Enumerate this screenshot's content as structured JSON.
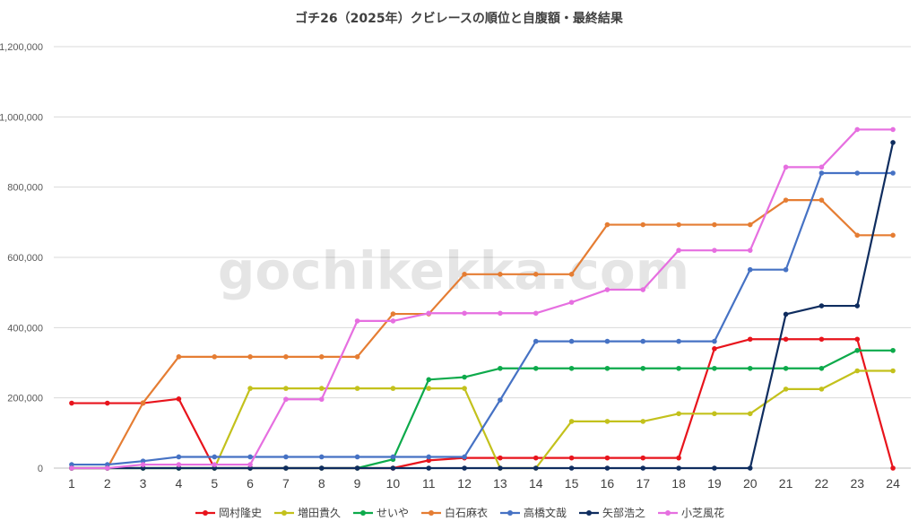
{
  "chart_data": {
    "type": "line",
    "title": "ゴチ26（2025年）クビレースの順位と自腹額・最終結果",
    "watermark": "gochikekka.com",
    "xlabel": "",
    "ylabel": "",
    "x": [
      1,
      2,
      3,
      4,
      5,
      6,
      7,
      8,
      9,
      10,
      11,
      12,
      13,
      14,
      15,
      16,
      17,
      18,
      19,
      20,
      21,
      22,
      23,
      24
    ],
    "ylim": [
      0,
      1200000
    ],
    "yticks": [
      0,
      200000,
      400000,
      600000,
      800000,
      1000000,
      1200000
    ],
    "ytick_labels": [
      "0",
      "200,000",
      "400,000",
      "600,000",
      "800,000",
      "1,000,000",
      "1,200,000"
    ],
    "xtick_labels": [
      "1",
      "2",
      "3",
      "4",
      "5",
      "6",
      "7",
      "8",
      "9",
      "10",
      "11",
      "12",
      "13",
      "14",
      "15",
      "16",
      "17",
      "18",
      "19",
      "20",
      "21",
      "22",
      "23",
      "24"
    ],
    "grid": true,
    "legend_position": "bottom",
    "series": [
      {
        "name": "岡村隆史",
        "color": "#e8141c",
        "values": [
          185000,
          185000,
          185000,
          197000,
          0,
          0,
          0,
          0,
          0,
          0,
          22000,
          29000,
          29000,
          29000,
          29000,
          29000,
          29000,
          29000,
          340000,
          367000,
          367000,
          367000,
          367000,
          0
        ]
      },
      {
        "name": "増田貴久",
        "color": "#c3c11c",
        "values": [
          0,
          0,
          0,
          0,
          0,
          227000,
          227000,
          227000,
          227000,
          227000,
          227000,
          227000,
          0,
          0,
          133000,
          133000,
          133000,
          155000,
          155000,
          155000,
          225000,
          225000,
          277000,
          277000
        ]
      },
      {
        "name": "せいや",
        "color": "#0daa4b",
        "values": [
          0,
          0,
          0,
          0,
          0,
          0,
          0,
          0,
          0,
          25000,
          252000,
          259000,
          284000,
          284000,
          284000,
          284000,
          284000,
          284000,
          284000,
          284000,
          284000,
          284000,
          335000,
          335000
        ]
      },
      {
        "name": "白石麻衣",
        "color": "#e57d33",
        "values": [
          0,
          0,
          186000,
          317000,
          317000,
          317000,
          317000,
          317000,
          317000,
          439000,
          439000,
          552000,
          552000,
          552000,
          552000,
          693000,
          693000,
          693000,
          693000,
          693000,
          763000,
          763000,
          663000,
          663000
        ]
      },
      {
        "name": "高橋文哉",
        "color": "#4672c4",
        "values": [
          10000,
          10000,
          20000,
          32000,
          32000,
          32000,
          32000,
          32000,
          32000,
          32000,
          32000,
          32000,
          194000,
          361000,
          361000,
          361000,
          361000,
          361000,
          361000,
          565000,
          565000,
          840000,
          840000,
          840000
        ]
      },
      {
        "name": "矢部浩之",
        "color": "#0f2d5f",
        "values": [
          0,
          0,
          0,
          0,
          0,
          0,
          0,
          0,
          0,
          0,
          0,
          0,
          0,
          0,
          0,
          0,
          0,
          0,
          0,
          0,
          438000,
          462000,
          462000,
          927000
        ]
      },
      {
        "name": "小芝風花",
        "color": "#e66fe0",
        "values": [
          0,
          0,
          10000,
          10000,
          10000,
          10000,
          196000,
          196000,
          419000,
          419000,
          441000,
          441000,
          441000,
          441000,
          472000,
          508000,
          508000,
          620000,
          620000,
          620000,
          857000,
          857000,
          964000,
          964000
        ]
      }
    ]
  }
}
